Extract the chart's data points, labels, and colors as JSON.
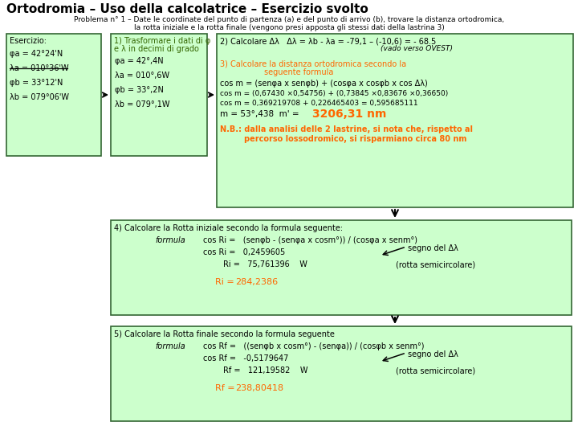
{
  "title": "Ortodromia – Uso della calcolatrice – Esercizio svolto",
  "subtitle1": "Problema n° 1 – Date le coordinate del punto di partenza (a) e del punto di arrivo (b), trovare la distanza ortodromica,",
  "subtitle2": "la rotta iniziale e la rotta finale (vengono presi apposta gli stessi dati della lastrina 3)",
  "bg_color": "#ffffff",
  "light_green": "#ccffcc",
  "green_border": "#336633",
  "orange_color": "#ff6600",
  "dark_green_text": "#336600",
  "esercizio_lines": [
    "φa = 42°24'N",
    "λa = 010°36'W",
    "φb = 33°12'N",
    "λb = 079°06'W"
  ],
  "step1_title": "1) Trasformare i dati di φ",
  "step1_title2": "e λ in decimi di grado",
  "step1_lines": [
    "φa = 42°,4N",
    "λa = 010°,6W",
    "φb = 33°,2N",
    "λb = 079°,1W"
  ],
  "step2_title": "2) Calcolare Δλ   Δλ = λb - λa = -79,1 – (-10,6) = - 68.5",
  "step2_sub": "(vado verso OVEST)",
  "step3_title": "3) Calcolare la distanza ortodromica secondo la",
  "step3_title2": "seguente formula",
  "step3_formula": "cos m = (senφa x senφb) + (cosφa x cosφb x cos Δλ)",
  "step3_calc1": "cos m = (0,67430 ×0,54756) + (0,73845 ×0,83676 ×0,36650)",
  "step3_calc2": "cos m = 0,369219708 + 0,226465403 = 0,595685111",
  "step3_result": "m = 53°,438  m' = ",
  "step3_highlight": "3206,31 nm",
  "step3_nb1": "N.B.: dalla analisi delle 2 lastrine, si nota che, rispetto al",
  "step3_nb2": "percorso lossodromico, si risparmiano circa 80 nm",
  "step4_title": "4) Calcolare la Rotta iniziale secondo la formula seguente:",
  "step4_formula_label": "formula",
  "step4_formula": "cos Ri =   (senφb - (senφa x cosm°)) / (cosφa x senm°)",
  "step4_cosRi": "cos Ri =   0,2459605",
  "step4_segno": "segno del Δλ",
  "step4_Ri": "Ri =   75,761396    W",
  "step4_Ri_note": "(rotta semicircolare)",
  "step4_Ri_final_label": "Ri =",
  "step4_Ri_final": "284,2386",
  "step5_title": "5) Calcolare la Rotta finale secondo la formula seguente",
  "step5_formula_label": "formula",
  "step5_formula": "cos Rf =   ((senφb x cosm°) - (senφa)) / (cosφb x senm°)",
  "step5_cosRf": "cos Rf =   -0,5179647",
  "step5_segno": "segno del Δλ",
  "step5_Rf": "Rf =   121,19582    W",
  "step5_Rf_note": "(rotta semicircolare)",
  "step5_Rf_final_label": "Rf =",
  "step5_Rf_final": "238,80418"
}
